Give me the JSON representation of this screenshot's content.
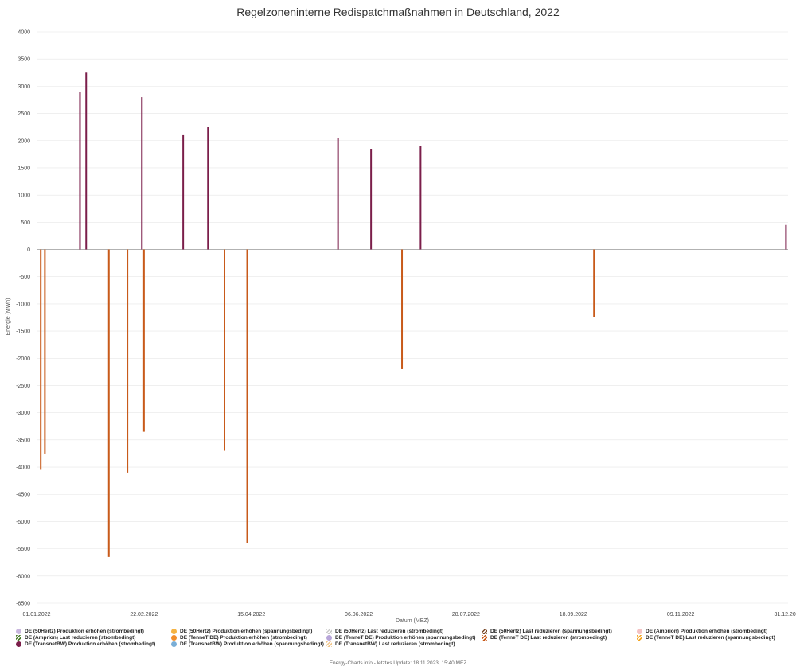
{
  "chart_data": {
    "type": "bar",
    "title": "Regelzoneninterne Redispatchmaßnahmen in Deutschland, 2022",
    "xlabel": "Datum (MEZ)",
    "ylabel": "Energie (MWh)",
    "ylim": [
      -6500,
      4000
    ],
    "yticks": [
      4000,
      3500,
      3000,
      2500,
      2000,
      1500,
      1000,
      500,
      0,
      -500,
      -1000,
      -1500,
      -2000,
      -2500,
      -3000,
      -3500,
      -4000,
      -4500,
      -5000,
      -5500,
      -6000,
      -6500
    ],
    "xlim": [
      "2022-01-01",
      "2022-12-31"
    ],
    "xticks": [
      {
        "date": "2022-01-01",
        "label": "01.01.2022"
      },
      {
        "date": "2022-02-22",
        "label": "22.02.2022"
      },
      {
        "date": "2022-04-15",
        "label": "15.04.2022"
      },
      {
        "date": "2022-06-06",
        "label": "06.06.2022"
      },
      {
        "date": "2022-07-28",
        "label": "28.07.2022"
      },
      {
        "date": "2022-09-18",
        "label": "18.09.2022"
      },
      {
        "date": "2022-11-09",
        "label": "09.11.2022"
      },
      {
        "date": "2022-12-31",
        "label": "31.12.2022"
      }
    ],
    "grid": true,
    "legend_position": "bottom",
    "series": [
      {
        "name": "DE (50Hertz) Produktion erhöhen (strombedingt)",
        "color": "#c9b7de",
        "marker": "circle"
      },
      {
        "name": "DE (50Hertz) Produktion erhöhen (spannungsbedingt)",
        "color": "#f5b342",
        "marker": "circle"
      },
      {
        "name": "DE (50Hertz) Last reduzieren (strombedingt)",
        "color": "#c9c9c9",
        "marker": "hatch"
      },
      {
        "name": "DE (50Hertz) Last reduzieren (spannungsbedingt)",
        "color": "#7a4a2a",
        "marker": "hatch"
      },
      {
        "name": "DE (Amprion) Produktion erhöhen (strombedingt)",
        "color": "#f4c2c2",
        "marker": "circle"
      },
      {
        "name": "DE (Amprion) Last reduzieren (strombedingt)",
        "color": "#4a7a2a",
        "marker": "hatch"
      },
      {
        "name": "DE (TenneT DE) Produktion erhöhen (strombedingt)",
        "color": "#f28e2b",
        "marker": "circle"
      },
      {
        "name": "DE (TenneT DE) Produktion erhöhen (spannungsbedingt)",
        "color": "#b8a6d9",
        "marker": "circle"
      },
      {
        "name": "DE (TenneT DE) Last reduzieren (strombedingt)",
        "color": "#c85a1a",
        "marker": "hatch"
      },
      {
        "name": "DE (TenneT DE) Last reduzieren (spannungsbedingt)",
        "color": "#f5a623",
        "marker": "hatch"
      },
      {
        "name": "DE (TransnetBW) Produktion erhöhen (strombedingt)",
        "color": "#7b1e4a",
        "marker": "circle"
      },
      {
        "name": "DE (TransnetBW) Produktion erhöhen (spannungsbedingt)",
        "color": "#7aaed6",
        "marker": "circle"
      },
      {
        "name": "DE (TransnetBW) Last reduzieren (strombedingt)",
        "color": "#f2c88e",
        "marker": "hatch"
      }
    ],
    "peaks": [
      {
        "date": "2022-01-03",
        "value": -4050
      },
      {
        "date": "2022-01-05",
        "value": -3750
      },
      {
        "date": "2022-01-22",
        "value": 2900
      },
      {
        "date": "2022-01-25",
        "value": 3250
      },
      {
        "date": "2022-02-05",
        "value": -5650
      },
      {
        "date": "2022-02-14",
        "value": -4100
      },
      {
        "date": "2022-02-21",
        "value": 2800
      },
      {
        "date": "2022-02-22",
        "value": -3350
      },
      {
        "date": "2022-03-13",
        "value": 2100
      },
      {
        "date": "2022-03-25",
        "value": 2250
      },
      {
        "date": "2022-04-02",
        "value": -3700
      },
      {
        "date": "2022-04-13",
        "value": -5400
      },
      {
        "date": "2022-05-27",
        "value": 2050
      },
      {
        "date": "2022-06-12",
        "value": 1850
      },
      {
        "date": "2022-06-27",
        "value": -2200
      },
      {
        "date": "2022-07-06",
        "value": 1900
      },
      {
        "date": "2022-09-28",
        "value": -1250
      },
      {
        "date": "2022-12-30",
        "value": 450
      }
    ]
  },
  "footer": "Energy-Charts.info - letztes Update: 18.11.2023, 15:40 MEZ"
}
